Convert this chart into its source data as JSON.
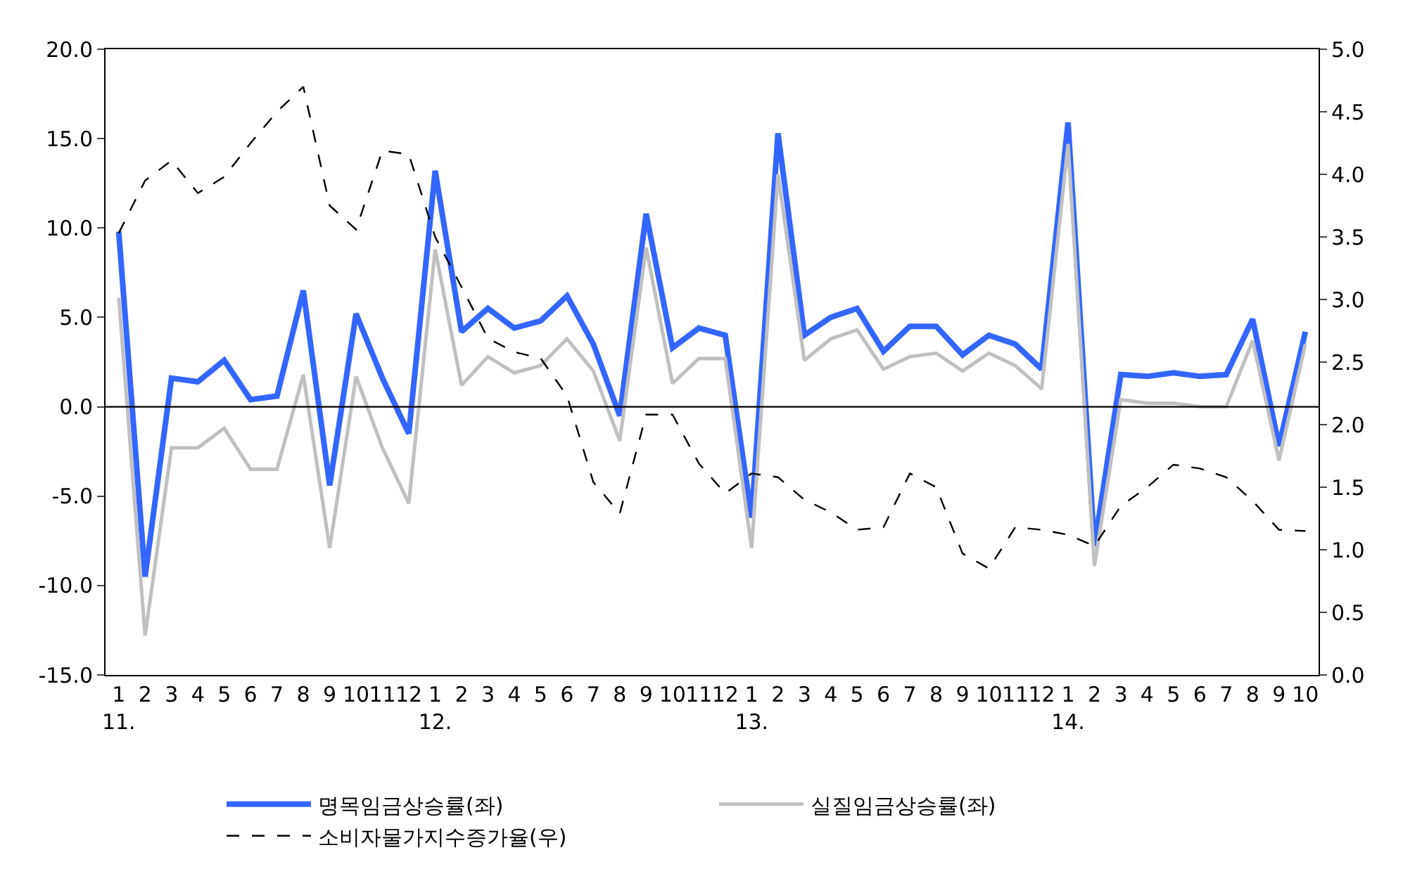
{
  "chart_data": {
    "type": "line",
    "categories": [
      "1\n11.",
      "2",
      "3",
      "4",
      "5",
      "6",
      "7",
      "8",
      "9",
      "10",
      "11",
      "12",
      "1\n12.",
      "2",
      "3",
      "4",
      "5",
      "6",
      "7",
      "8",
      "9",
      "10",
      "11",
      "12",
      "1\n13.",
      "2",
      "3",
      "4",
      "5",
      "6",
      "7",
      "8",
      "9",
      "10",
      "11",
      "12",
      "1\n14.",
      "2",
      "3",
      "4",
      "5",
      "6",
      "7",
      "8",
      "9",
      "10"
    ],
    "series": [
      {
        "name": "명목임금상승률(좌)",
        "color": "#3366ff",
        "line_style": "solid",
        "values": [
          9.8,
          -9.5,
          1.6,
          1.4,
          2.6,
          0.4,
          0.6,
          6.5,
          -4.4,
          5.2,
          1.6,
          -1.5,
          13.2,
          4.2,
          5.5,
          4.4,
          4.8,
          6.2,
          3.5,
          -0.5,
          10.8,
          3.3,
          4.4,
          4.0,
          -6.2,
          15.3,
          4.0,
          5.0,
          5.5,
          3.1,
          4.5,
          4.5,
          2.9,
          4.0,
          3.5,
          2.1,
          15.9,
          -7.8,
          1.8,
          1.7,
          1.9,
          1.7,
          1.8,
          4.9,
          -2.2,
          4.2
        ]
      },
      {
        "name": "실질임금상승률(좌)",
        "color": "#c0c0c0",
        "line_style": "solid",
        "values": [
          6.1,
          -12.8,
          -2.3,
          -2.3,
          -1.2,
          -3.5,
          -3.5,
          1.8,
          -7.9,
          1.7,
          -2.3,
          -5.4,
          8.8,
          1.2,
          2.8,
          1.9,
          2.3,
          3.8,
          2.0,
          -1.9,
          8.9,
          1.3,
          2.7,
          2.7,
          -7.9,
          13.0,
          2.6,
          3.8,
          4.3,
          2.1,
          2.8,
          3.0,
          2.0,
          3.0,
          2.3,
          1.0,
          14.7,
          -8.9,
          0.4,
          0.2,
          0.2,
          0.0,
          0.0,
          3.7,
          -3.0,
          3.5
        ]
      },
      {
        "name": "소비자물가지수증가율(우)",
        "color": "#000000",
        "line_style": "dashed",
        "axis": "y2",
        "values": [
          3.53,
          3.95,
          4.11,
          3.85,
          3.98,
          4.25,
          4.5,
          4.7,
          3.75,
          3.56,
          4.19,
          4.16,
          3.5,
          3.1,
          2.69,
          2.58,
          2.53,
          2.23,
          1.54,
          1.29,
          2.08,
          2.08,
          1.69,
          1.45,
          1.61,
          1.58,
          1.4,
          1.3,
          1.16,
          1.18,
          1.61,
          1.5,
          0.97,
          0.85,
          1.18,
          1.16,
          1.12,
          1.03,
          1.35,
          1.5,
          1.68,
          1.65,
          1.58,
          1.39,
          1.16,
          1.15
        ]
      }
    ],
    "ylim": [
      -15,
      20
    ],
    "yticks": [
      {
        "value": -15,
        "label": "-15.0"
      },
      {
        "value": -10,
        "label": "-10.0"
      },
      {
        "value": -5,
        "label": "-5.0"
      },
      {
        "value": 0,
        "label": "0.0"
      },
      {
        "value": 5,
        "label": "5.0"
      },
      {
        "value": 10,
        "label": "10.0"
      },
      {
        "value": 15,
        "label": "15.0"
      },
      {
        "value": 20,
        "label": "20.0"
      }
    ],
    "y2lim": [
      0,
      5
    ],
    "y2ticks": [
      {
        "value": 0,
        "label": "0.0"
      },
      {
        "value": 0.5,
        "label": "0.5"
      },
      {
        "value": 1,
        "label": "1.0"
      },
      {
        "value": 1.5,
        "label": "1.5"
      },
      {
        "value": 2,
        "label": "2.0"
      },
      {
        "value": 2.5,
        "label": "2.5"
      },
      {
        "value": 3,
        "label": "3.0"
      },
      {
        "value": 3.5,
        "label": "3.5"
      },
      {
        "value": 4,
        "label": "4.0"
      },
      {
        "value": 4.5,
        "label": "4.5"
      },
      {
        "value": 5,
        "label": "5.0"
      }
    ],
    "ref_lines": [
      {
        "axis": "y",
        "value": 0,
        "color": "#000000"
      }
    ],
    "legend": "bottom",
    "marker": "none"
  }
}
